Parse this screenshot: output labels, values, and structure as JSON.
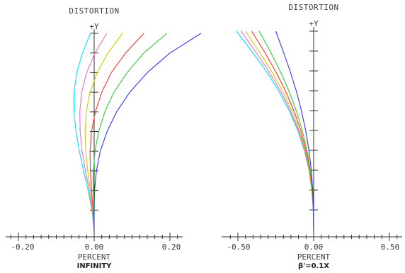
{
  "chart_data": [
    {
      "type": "line",
      "title": "DISTORTION",
      "y_axis_label": "+Y",
      "xlabel": "PERCENT",
      "subtitle": "INFINITY",
      "xlim": [
        -0.25,
        0.25
      ],
      "ylim": [
        0,
        1
      ],
      "xticks": [
        -0.2,
        0,
        0.2
      ],
      "xtick_labels": [
        "-0.20",
        "0.00",
        "0.20"
      ],
      "y_tick_count": 10,
      "grid": false,
      "series": [
        {
          "color": "#00e5ff",
          "points": [
            [
              0,
              0
            ],
            [
              -0.006,
              0.1
            ],
            [
              -0.016,
              0.2
            ],
            [
              -0.028,
              0.3
            ],
            [
              -0.039,
              0.4
            ],
            [
              -0.048,
              0.5
            ],
            [
              -0.053,
              0.6
            ],
            [
              -0.053,
              0.7
            ],
            [
              -0.046,
              0.8
            ],
            [
              -0.031,
              0.9
            ],
            [
              -0.01,
              1
            ]
          ]
        },
        {
          "color": "#ff66cc",
          "points": [
            [
              0,
              0
            ],
            [
              -0.005,
              0.1
            ],
            [
              -0.013,
              0.2
            ],
            [
              -0.023,
              0.3
            ],
            [
              -0.032,
              0.4
            ],
            [
              -0.037,
              0.5
            ],
            [
              -0.038,
              0.6
            ],
            [
              -0.033,
              0.7
            ],
            [
              -0.02,
              0.8
            ],
            [
              0.002,
              0.9
            ],
            [
              0.033,
              1
            ]
          ]
        },
        {
          "color": "#cccc00",
          "points": [
            [
              0,
              0
            ],
            [
              -0.004,
              0.1
            ],
            [
              -0.01,
              0.2
            ],
            [
              -0.017,
              0.3
            ],
            [
              -0.022,
              0.4
            ],
            [
              -0.024,
              0.5
            ],
            [
              -0.021,
              0.6
            ],
            [
              -0.011,
              0.7
            ],
            [
              0.008,
              0.8
            ],
            [
              0.036,
              0.9
            ],
            [
              0.075,
              1
            ]
          ]
        },
        {
          "color": "#ff3333",
          "points": [
            [
              0,
              0
            ],
            [
              -0.003,
              0.1
            ],
            [
              -0.007,
              0.2
            ],
            [
              -0.01,
              0.3
            ],
            [
              -0.011,
              0.4
            ],
            [
              -0.007,
              0.5
            ],
            [
              0.003,
              0.6
            ],
            [
              0.02,
              0.7
            ],
            [
              0.045,
              0.8
            ],
            [
              0.083,
              0.9
            ],
            [
              0.131,
              1
            ]
          ]
        },
        {
          "color": "#33cc33",
          "points": [
            [
              0,
              0
            ],
            [
              -0.001,
              0.1
            ],
            [
              -0.002,
              0.2
            ],
            [
              -0.002,
              0.3
            ],
            [
              0.002,
              0.4
            ],
            [
              0.012,
              0.5
            ],
            [
              0.028,
              0.6
            ],
            [
              0.052,
              0.7
            ],
            [
              0.087,
              0.8
            ],
            [
              0.131,
              0.9
            ],
            [
              0.192,
              1
            ]
          ]
        },
        {
          "color": "#3333ff",
          "points": [
            [
              0,
              0
            ],
            [
              0,
              0.1
            ],
            [
              0.001,
              0.2
            ],
            [
              0.006,
              0.3
            ],
            [
              0.016,
              0.4
            ],
            [
              0.034,
              0.5
            ],
            [
              0.059,
              0.6
            ],
            [
              0.094,
              0.7
            ],
            [
              0.14,
              0.8
            ],
            [
              0.2,
              0.9
            ],
            [
              0.282,
              1
            ]
          ]
        }
      ]
    },
    {
      "type": "line",
      "title": "DISTORTION",
      "y_axis_label": "+Y",
      "xlabel": "PERCENT",
      "subtitle": "β'=0.1X",
      "xlim": [
        -0.58,
        0.58
      ],
      "ylim": [
        0,
        1
      ],
      "xticks": [
        -0.5,
        0,
        0.5
      ],
      "xtick_labels": [
        "-0.50",
        "0.00",
        "0.50"
      ],
      "y_tick_count": 10,
      "grid": false,
      "series": [
        {
          "color": "#00e5ff",
          "points": [
            [
              0,
              0
            ],
            [
              -0.003,
              0.1
            ],
            [
              -0.012,
              0.2
            ],
            [
              -0.031,
              0.3
            ],
            [
              -0.062,
              0.4
            ],
            [
              -0.105,
              0.5
            ],
            [
              -0.162,
              0.6
            ],
            [
              -0.232,
              0.7
            ],
            [
              -0.315,
              0.8
            ],
            [
              -0.41,
              0.9
            ],
            [
              -0.51,
              1
            ]
          ]
        },
        {
          "color": "#ff66cc",
          "points": [
            [
              0,
              0
            ],
            [
              -0.003,
              0.1
            ],
            [
              -0.012,
              0.2
            ],
            [
              -0.03,
              0.3
            ],
            [
              -0.059,
              0.4
            ],
            [
              -0.1,
              0.5
            ],
            [
              -0.154,
              0.6
            ],
            [
              -0.22,
              0.7
            ],
            [
              -0.298,
              0.8
            ],
            [
              -0.387,
              0.9
            ],
            [
              -0.48,
              1
            ]
          ]
        },
        {
          "color": "#cccc00",
          "points": [
            [
              0,
              0
            ],
            [
              -0.002,
              0.1
            ],
            [
              -0.011,
              0.2
            ],
            [
              -0.028,
              0.3
            ],
            [
              -0.055,
              0.4
            ],
            [
              -0.094,
              0.5
            ],
            [
              -0.144,
              0.6
            ],
            [
              -0.206,
              0.7
            ],
            [
              -0.279,
              0.8
            ],
            [
              -0.362,
              0.9
            ],
            [
              -0.45,
              1
            ]
          ]
        },
        {
          "color": "#ff3333",
          "points": [
            [
              0,
              0
            ],
            [
              -0.002,
              0.1
            ],
            [
              -0.01,
              0.2
            ],
            [
              -0.025,
              0.3
            ],
            [
              -0.05,
              0.4
            ],
            [
              -0.085,
              0.5
            ],
            [
              -0.131,
              0.6
            ],
            [
              -0.187,
              0.7
            ],
            [
              -0.253,
              0.8
            ],
            [
              -0.328,
              0.9
            ],
            [
              -0.41,
              1
            ]
          ]
        },
        {
          "color": "#33cc33",
          "points": [
            [
              0,
              0
            ],
            [
              -0.002,
              0.1
            ],
            [
              -0.009,
              0.2
            ],
            [
              -0.022,
              0.3
            ],
            [
              -0.044,
              0.4
            ],
            [
              -0.075,
              0.5
            ],
            [
              -0.115,
              0.6
            ],
            [
              -0.164,
              0.7
            ],
            [
              -0.222,
              0.8
            ],
            [
              -0.288,
              0.9
            ],
            [
              -0.36,
              1
            ]
          ]
        },
        {
          "color": "#3333ff",
          "points": [
            [
              0,
              0
            ],
            [
              -0.001,
              0.1
            ],
            [
              -0.006,
              0.2
            ],
            [
              -0.016,
              0.3
            ],
            [
              -0.031,
              0.4
            ],
            [
              -0.053,
              0.5
            ],
            [
              -0.081,
              0.6
            ],
            [
              -0.115,
              0.7
            ],
            [
              -0.156,
              0.8
            ],
            [
              -0.202,
              0.9
            ],
            [
              -0.25,
              1
            ]
          ]
        }
      ]
    }
  ]
}
